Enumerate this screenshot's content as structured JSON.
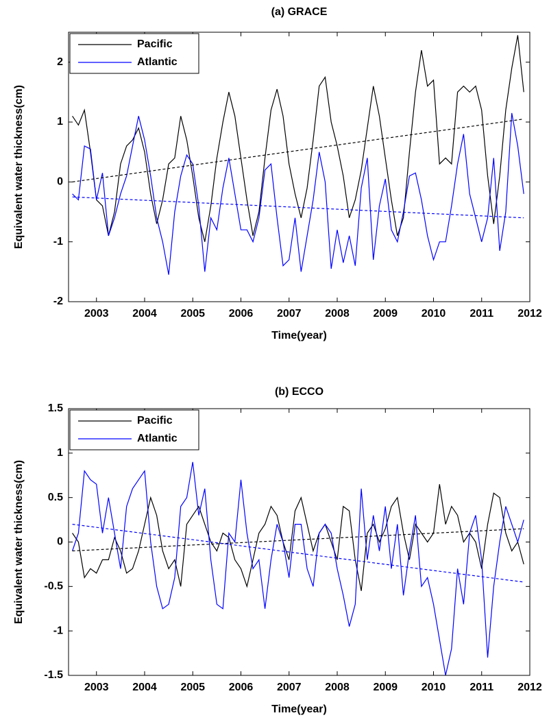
{
  "chart_data": [
    {
      "type": "line",
      "title": "(a) GRACE",
      "xlabel": "Time(year)",
      "ylabel": "Equivalent water thickness(cm)",
      "xlim": [
        2002.42,
        2012
      ],
      "xticks": [
        2003,
        2004,
        2005,
        2006,
        2007,
        2008,
        2009,
        2010,
        2011,
        2012
      ],
      "ylim": [
        -2,
        2.5
      ],
      "yticks": [
        -2,
        -1,
        0,
        1,
        2
      ],
      "legend": "upper-left",
      "x": [
        2002.5,
        2002.625,
        2002.75,
        2002.875,
        2003,
        2003.125,
        2003.25,
        2003.375,
        2003.5,
        2003.625,
        2003.75,
        2003.875,
        2004,
        2004.125,
        2004.25,
        2004.375,
        2004.5,
        2004.625,
        2004.75,
        2004.875,
        2005,
        2005.125,
        2005.25,
        2005.375,
        2005.5,
        2005.625,
        2005.75,
        2005.875,
        2006,
        2006.125,
        2006.25,
        2006.375,
        2006.5,
        2006.625,
        2006.75,
        2006.875,
        2007,
        2007.125,
        2007.25,
        2007.375,
        2007.5,
        2007.625,
        2007.75,
        2007.875,
        2008,
        2008.125,
        2008.25,
        2008.375,
        2008.5,
        2008.625,
        2008.75,
        2008.875,
        2009,
        2009.125,
        2009.25,
        2009.375,
        2009.5,
        2009.625,
        2009.75,
        2009.875,
        2010,
        2010.125,
        2010.25,
        2010.375,
        2010.5,
        2010.625,
        2010.75,
        2010.875,
        2011,
        2011.125,
        2011.25,
        2011.375,
        2011.5,
        2011.625,
        2011.75,
        2011.875
      ],
      "series": [
        {
          "name": "Pacific",
          "color": "#000000",
          "values": [
            1.1,
            0.95,
            1.2,
            0.5,
            -0.3,
            -0.4,
            -0.9,
            -0.5,
            0.3,
            0.6,
            0.7,
            0.9,
            0.5,
            -0.2,
            -0.7,
            -0.3,
            0.3,
            0.4,
            1.1,
            0.7,
            0.1,
            -0.6,
            -1.0,
            -0.4,
            0.4,
            1.0,
            1.5,
            1.1,
            0.4,
            -0.3,
            -0.9,
            -0.5,
            0.4,
            1.2,
            1.55,
            1.1,
            0.3,
            -0.2,
            -0.6,
            -0.1,
            0.7,
            1.6,
            1.75,
            1.0,
            0.6,
            0.1,
            -0.6,
            -0.3,
            0.2,
            0.9,
            1.6,
            1.1,
            0.4,
            -0.3,
            -0.9,
            -0.6,
            0.5,
            1.5,
            2.2,
            1.6,
            1.7,
            0.3,
            0.4,
            0.3,
            1.5,
            1.6,
            1.5,
            1.6,
            1.2,
            0.1,
            -0.7,
            0.1,
            1.2,
            1.9,
            2.45,
            1.5
          ]
        },
        {
          "name": "Atlantic",
          "color": "#0000ff",
          "values": [
            -0.2,
            -0.3,
            0.6,
            0.55,
            -0.3,
            0.15,
            -0.9,
            -0.6,
            -0.2,
            0.1,
            0.6,
            1.1,
            0.7,
            0.1,
            -0.6,
            -1.0,
            -1.55,
            -0.5,
            0.1,
            0.45,
            0.3,
            -0.4,
            -1.5,
            -0.6,
            -0.8,
            -0.1,
            0.4,
            -0.2,
            -0.8,
            -0.8,
            -1.0,
            -0.6,
            0.2,
            0.3,
            -0.6,
            -1.4,
            -1.3,
            -0.6,
            -1.5,
            -0.9,
            -0.3,
            0.5,
            0.0,
            -1.45,
            -0.8,
            -1.35,
            -0.9,
            -1.4,
            -0.1,
            0.4,
            -1.3,
            -0.4,
            0.05,
            -0.8,
            -1.0,
            -0.5,
            0.1,
            0.15,
            -0.3,
            -0.9,
            -1.3,
            -1.0,
            -1.0,
            -0.4,
            0.3,
            0.8,
            -0.2,
            -0.6,
            -1.0,
            -0.6,
            0.4,
            -1.15,
            -0.5,
            1.15,
            0.6,
            -0.2
          ]
        },
        {
          "color": "#000000",
          "dashed": true,
          "x": [
            2002.5,
            2011.875
          ],
          "values": [
            0.0,
            1.05
          ]
        },
        {
          "color": "#0000ff",
          "dashed": true,
          "x": [
            2002.5,
            2011.875
          ],
          "values": [
            -0.25,
            -0.6
          ]
        }
      ]
    },
    {
      "type": "line",
      "title": "(b) ECCO",
      "xlabel": "Time(year)",
      "ylabel": "Equivalent water thickness(cm)",
      "xlim": [
        2002.42,
        2012
      ],
      "xticks": [
        2003,
        2004,
        2005,
        2006,
        2007,
        2008,
        2009,
        2010,
        2011,
        2012
      ],
      "ylim": [
        -1.5,
        1.5
      ],
      "yticks": [
        -1.5,
        -1,
        -0.5,
        0,
        0.5,
        1,
        1.5
      ],
      "legend": "upper-left",
      "x": [
        2002.5,
        2002.625,
        2002.75,
        2002.875,
        2003,
        2003.125,
        2003.25,
        2003.375,
        2003.5,
        2003.625,
        2003.75,
        2003.875,
        2004,
        2004.125,
        2004.25,
        2004.375,
        2004.5,
        2004.625,
        2004.75,
        2004.875,
        2005,
        2005.125,
        2005.25,
        2005.375,
        2005.5,
        2005.625,
        2005.75,
        2005.875,
        2006,
        2006.125,
        2006.25,
        2006.375,
        2006.5,
        2006.625,
        2006.75,
        2006.875,
        2007,
        2007.125,
        2007.25,
        2007.375,
        2007.5,
        2007.625,
        2007.75,
        2007.875,
        2008,
        2008.125,
        2008.25,
        2008.375,
        2008.5,
        2008.625,
        2008.75,
        2008.875,
        2009,
        2009.125,
        2009.25,
        2009.375,
        2009.5,
        2009.625,
        2009.75,
        2009.875,
        2010,
        2010.125,
        2010.25,
        2010.375,
        2010.5,
        2010.625,
        2010.75,
        2010.875,
        2011,
        2011.125,
        2011.25,
        2011.375,
        2011.5,
        2011.625,
        2011.75,
        2011.875
      ],
      "series": [
        {
          "name": "Pacific",
          "color": "#000000",
          "values": [
            0.1,
            0.0,
            -0.4,
            -0.3,
            -0.35,
            -0.2,
            -0.2,
            0.05,
            -0.1,
            -0.35,
            -0.3,
            -0.1,
            0.2,
            0.5,
            0.3,
            -0.1,
            -0.3,
            -0.2,
            -0.5,
            0.2,
            0.3,
            0.4,
            0.2,
            0.0,
            -0.1,
            0.1,
            0.05,
            -0.2,
            -0.3,
            -0.5,
            -0.2,
            0.1,
            0.2,
            0.4,
            0.3,
            0.0,
            -0.2,
            0.35,
            0.5,
            0.2,
            -0.1,
            0.1,
            0.2,
            0.0,
            -0.2,
            0.4,
            0.35,
            -0.2,
            -0.55,
            0.1,
            0.2,
            0.0,
            0.15,
            0.4,
            0.5,
            0.1,
            -0.2,
            0.2,
            0.1,
            0.0,
            0.1,
            0.65,
            0.2,
            0.4,
            0.3,
            0.0,
            0.1,
            0.0,
            -0.3,
            0.2,
            0.55,
            0.5,
            0.1,
            -0.1,
            0.0,
            -0.25
          ]
        },
        {
          "name": "Atlantic",
          "color": "#0000ff",
          "values": [
            -0.1,
            0.1,
            0.8,
            0.7,
            0.65,
            0.1,
            0.5,
            0.1,
            -0.3,
            0.4,
            0.6,
            0.7,
            0.8,
            0.0,
            -0.5,
            -0.75,
            -0.7,
            -0.4,
            0.4,
            0.5,
            0.9,
            0.3,
            0.6,
            -0.2,
            -0.7,
            -0.75,
            0.1,
            0.0,
            0.7,
            0.1,
            -0.3,
            -0.2,
            -0.75,
            -0.2,
            0.2,
            0.0,
            -0.4,
            0.2,
            0.2,
            -0.3,
            -0.5,
            0.1,
            0.2,
            0.1,
            -0.3,
            -0.6,
            -0.95,
            -0.7,
            0.6,
            -0.2,
            0.3,
            -0.1,
            0.4,
            -0.3,
            0.2,
            -0.6,
            -0.1,
            0.3,
            -0.5,
            -0.4,
            -0.7,
            -1.1,
            -1.5,
            -1.2,
            -0.3,
            -0.7,
            0.1,
            0.3,
            -0.2,
            -1.3,
            -0.5,
            0.0,
            0.4,
            0.2,
            0.0,
            0.25
          ]
        },
        {
          "color": "#000000",
          "dashed": true,
          "x": [
            2002.5,
            2011.875
          ],
          "values": [
            -0.1,
            0.15
          ]
        },
        {
          "color": "#0000ff",
          "dashed": true,
          "x": [
            2002.5,
            2011.875
          ],
          "values": [
            0.2,
            -0.45
          ]
        }
      ]
    }
  ]
}
